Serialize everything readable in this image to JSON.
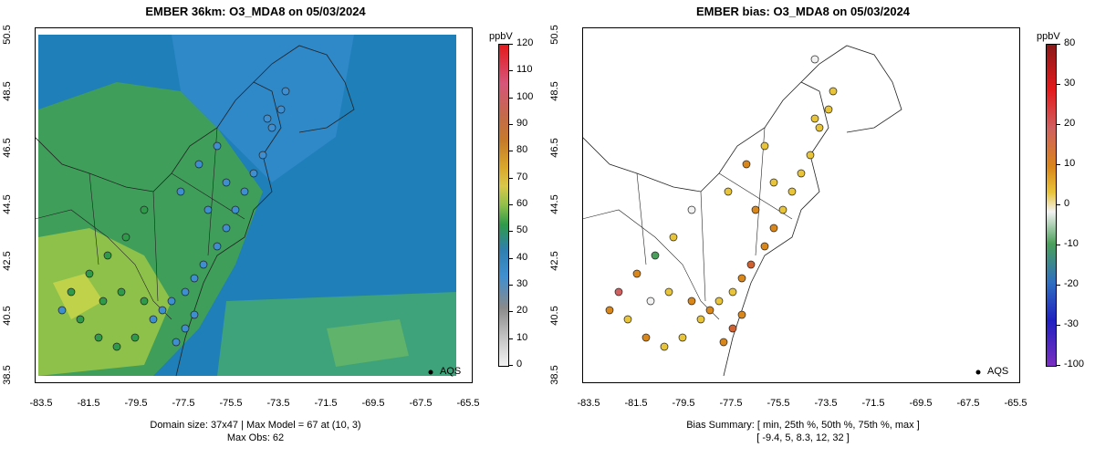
{
  "left": {
    "title": "EMBER 36km: O3_MDA8 on 05/03/2024",
    "caption_line1": "Domain size: 37x47 | Max Model = 67 at (10, 3)",
    "caption_line2": "Max Obs: 62",
    "colorbar": {
      "unit": "ppbV",
      "ticks": [
        "120",
        "110",
        "100",
        "90",
        "80",
        "70",
        "60",
        "50",
        "40",
        "30",
        "20",
        "10",
        "0"
      ],
      "colors": [
        "#e31a1c",
        "#d6557a",
        "#c46a4a",
        "#c67b2a",
        "#d9a62a",
        "#d9c84a",
        "#8fbf4a",
        "#2f9a4a",
        "#2f7fb0",
        "#3f8fd0",
        "#8a8a8a",
        "#bdbdbd",
        "#f2f2f2"
      ]
    },
    "legend": {
      "label": "AQS"
    }
  },
  "right": {
    "title": "EMBER bias: O3_MDA8 on 05/03/2024",
    "caption_line1": "Bias Summary: [ min, 25th %, 50th %, 75th %, max ]",
    "caption_line2": "[ -9.4,   5,   8.3,   12,   32 ]",
    "colorbar": {
      "unit": "ppbV",
      "ticks": [
        "80",
        "30",
        "20",
        "10",
        "0",
        "-10",
        "-20",
        "-30",
        "-100"
      ],
      "colors": [
        "#8b1a1a",
        "#e31a1c",
        "#d06060",
        "#d9861a",
        "#e8c43a",
        "#f2f2f2",
        "#4aa05a",
        "#2f6fc0",
        "#2020c0",
        "#7a30c0"
      ]
    },
    "legend": {
      "label": "AQS"
    }
  },
  "axes": {
    "yticks": [
      "38.5",
      "40.5",
      "42.5",
      "44.5",
      "46.5",
      "48.5",
      "50.5"
    ],
    "xticks": [
      "-83.5",
      "-81.5",
      "-79.5",
      "-77.5",
      "-75.5",
      "-73.5",
      "-71.5",
      "-69.5",
      "-67.5",
      "-65.5"
    ]
  },
  "colors": {
    "ocean": "#1a78b4",
    "land_high": "#2e8f86",
    "land_mid": "#47a857",
    "land_warm": "#8ec14a",
    "pale_band": "#5aa88a"
  }
}
